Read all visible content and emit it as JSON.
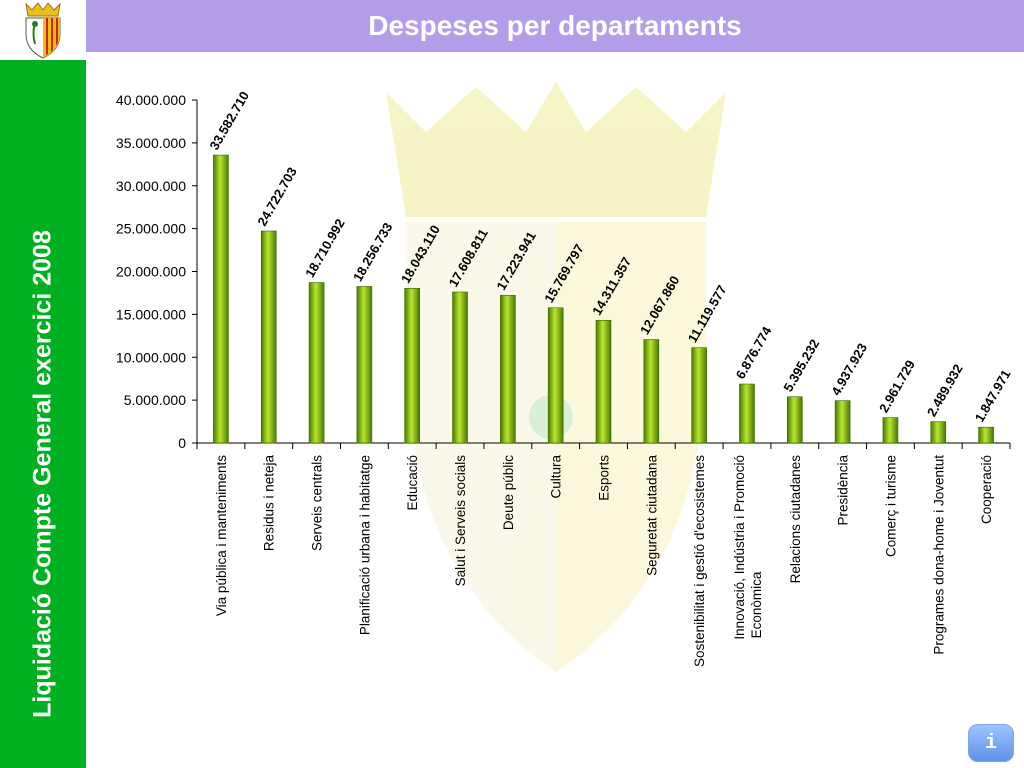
{
  "slide": {
    "title": "Despeses per departaments",
    "sidebar_text": "Liquidació Compte General exercici 2008",
    "info_button_label": "i"
  },
  "colors": {
    "title_bar": "#b39ce8",
    "sidebar": "#00b020",
    "bar_dark": "#4a7a00",
    "bar_light": "#b8e830"
  },
  "icons": {
    "logo": "coat-of-arms-icon",
    "info": "info-icon"
  },
  "chart_data": {
    "type": "bar",
    "title": "",
    "xlabel": "",
    "ylabel": "",
    "ylim": [
      0,
      40000000
    ],
    "yticks": [
      0,
      5000000,
      10000000,
      15000000,
      20000000,
      25000000,
      30000000,
      35000000,
      40000000
    ],
    "ytick_labels": [
      "0",
      "5.000.000",
      "10.000.000",
      "15.000.000",
      "20.000.000",
      "25.000.000",
      "30.000.000",
      "35.000.000",
      "40.000.000"
    ],
    "grid": false,
    "legend": "none",
    "categories": [
      [
        "Via pública i manteniments"
      ],
      [
        "Residus i neteja"
      ],
      [
        "Serveis centrals"
      ],
      [
        "Planificació urbana i habitatge"
      ],
      [
        "Educació"
      ],
      [
        "Salut i Serveis socials"
      ],
      [
        "Deute públic"
      ],
      [
        "Cultura"
      ],
      [
        "Esports"
      ],
      [
        "Seguretat ciutadana"
      ],
      [
        "Sostenibilitat i gestió d'ecosistemes"
      ],
      [
        "Innovació, Indústria i Promoció",
        "Econòmica"
      ],
      [
        "Relacions ciutadanes"
      ],
      [
        "Presidència"
      ],
      [
        "Comerç i turisme"
      ],
      [
        "Programes dona-home i Joventut"
      ],
      [
        "Cooperació"
      ]
    ],
    "values": [
      33582710,
      24722703,
      18710992,
      18256733,
      18043110,
      17608811,
      17223941,
      15769797,
      14311357,
      12067860,
      11119577,
      6876774,
      5395232,
      4937923,
      2961729,
      2489932,
      1847971
    ],
    "data_labels": [
      "33.582.710",
      "24.722.703",
      "18.710.992",
      "18.256.733",
      "18.043.110",
      "17.608.811",
      "17.223.941",
      "15.769.797",
      "14.311.357",
      "12.067.860",
      "11.119.577",
      "6.876.774",
      "5.395.232",
      "4.937.923",
      "2.961.729",
      "2.489.932",
      "1.847.971"
    ]
  }
}
